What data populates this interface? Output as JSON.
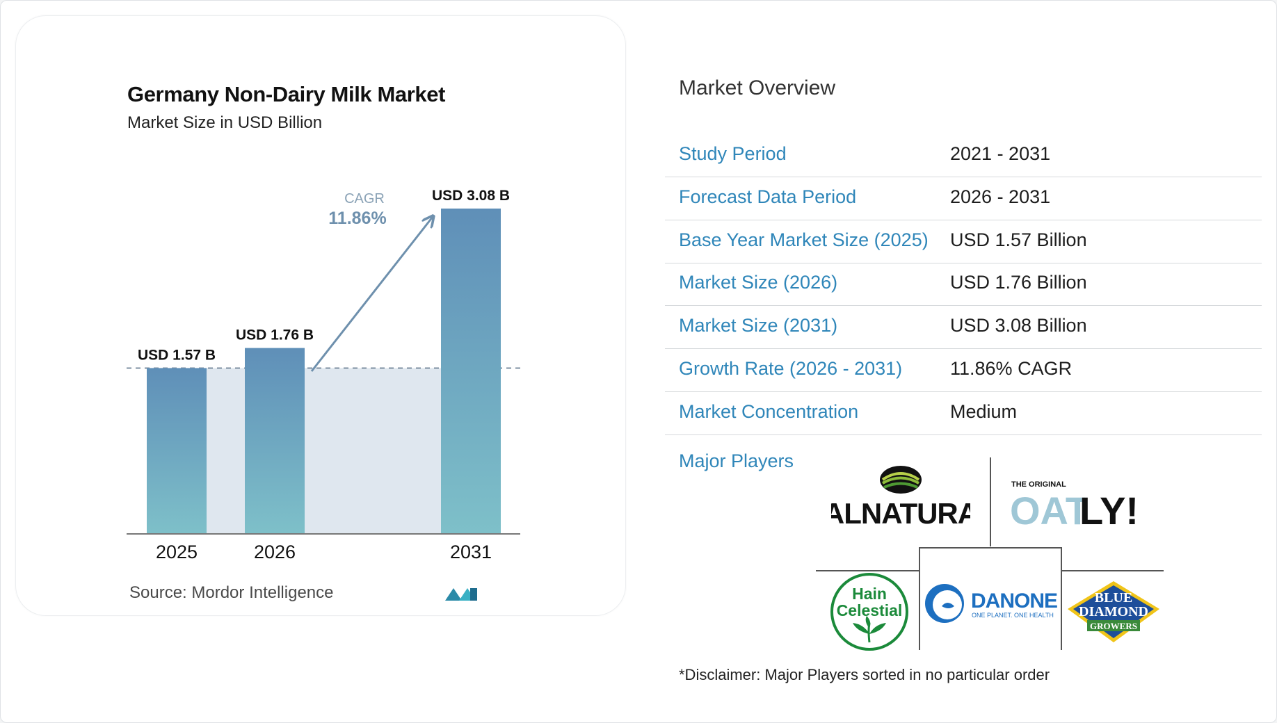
{
  "chart": {
    "title": "Germany Non-Dairy Milk Market",
    "subtitle": "Market Size in USD Billion",
    "source": "Source:  Mordor Intelligence",
    "cagr_label": "CAGR",
    "cagr_value": "11.86%",
    "bar_labels": [
      "USD 1.57 B",
      "USD 1.76 B",
      "USD 3.08 B"
    ]
  },
  "chart_data": {
    "type": "bar",
    "title": "Germany Non-Dairy Milk Market",
    "subtitle": "Market Size in USD Billion",
    "categories": [
      "2025",
      "2026",
      "2031"
    ],
    "values": [
      1.57,
      1.76,
      3.08
    ],
    "ylabel": "",
    "xlabel": "",
    "ylim": [
      0,
      3.08
    ],
    "grid": false,
    "annotations": [
      "CAGR 11.86%"
    ],
    "colors": {
      "bar_top": "#5f8fb8",
      "bar_bottom": "#7ec0c9",
      "band": "#dfe7ef",
      "arrow": "#6e90ad"
    }
  },
  "overview": {
    "title": "Market Overview",
    "rows": [
      {
        "key": "Study Period",
        "value": "2021 - 2031"
      },
      {
        "key": "Forecast Data Period",
        "value": "2026 - 2031"
      },
      {
        "key": "Base Year Market Size (2025)",
        "value": "USD 1.57 Billion"
      },
      {
        "key": "Market Size (2026)",
        "value": "USD 1.76 Billion"
      },
      {
        "key": "Market Size (2031)",
        "value": "USD 3.08 Billion"
      },
      {
        "key": "Growth Rate (2026 - 2031)",
        "value": "11.86% CAGR"
      },
      {
        "key": "Market Concentration",
        "value": "Medium"
      }
    ],
    "players_label": "Major Players",
    "disclaimer": "*Disclaimer: Major Players sorted in no particular order"
  },
  "players": {
    "alnatura": "ALNATURA",
    "oatly_small": "THE ORIGINAL",
    "oatly": "OATLY!",
    "hain": [
      "Hain",
      "Celestial"
    ],
    "danone": "DANONE",
    "danone_tag": "ONE PLANET. ONE HEALTH",
    "blue_diamond": [
      "BLUE",
      "DIAMOND",
      "GROWERS"
    ]
  },
  "colors": {
    "accent": "#2f86b9",
    "row_divider": "#d5d8db"
  }
}
